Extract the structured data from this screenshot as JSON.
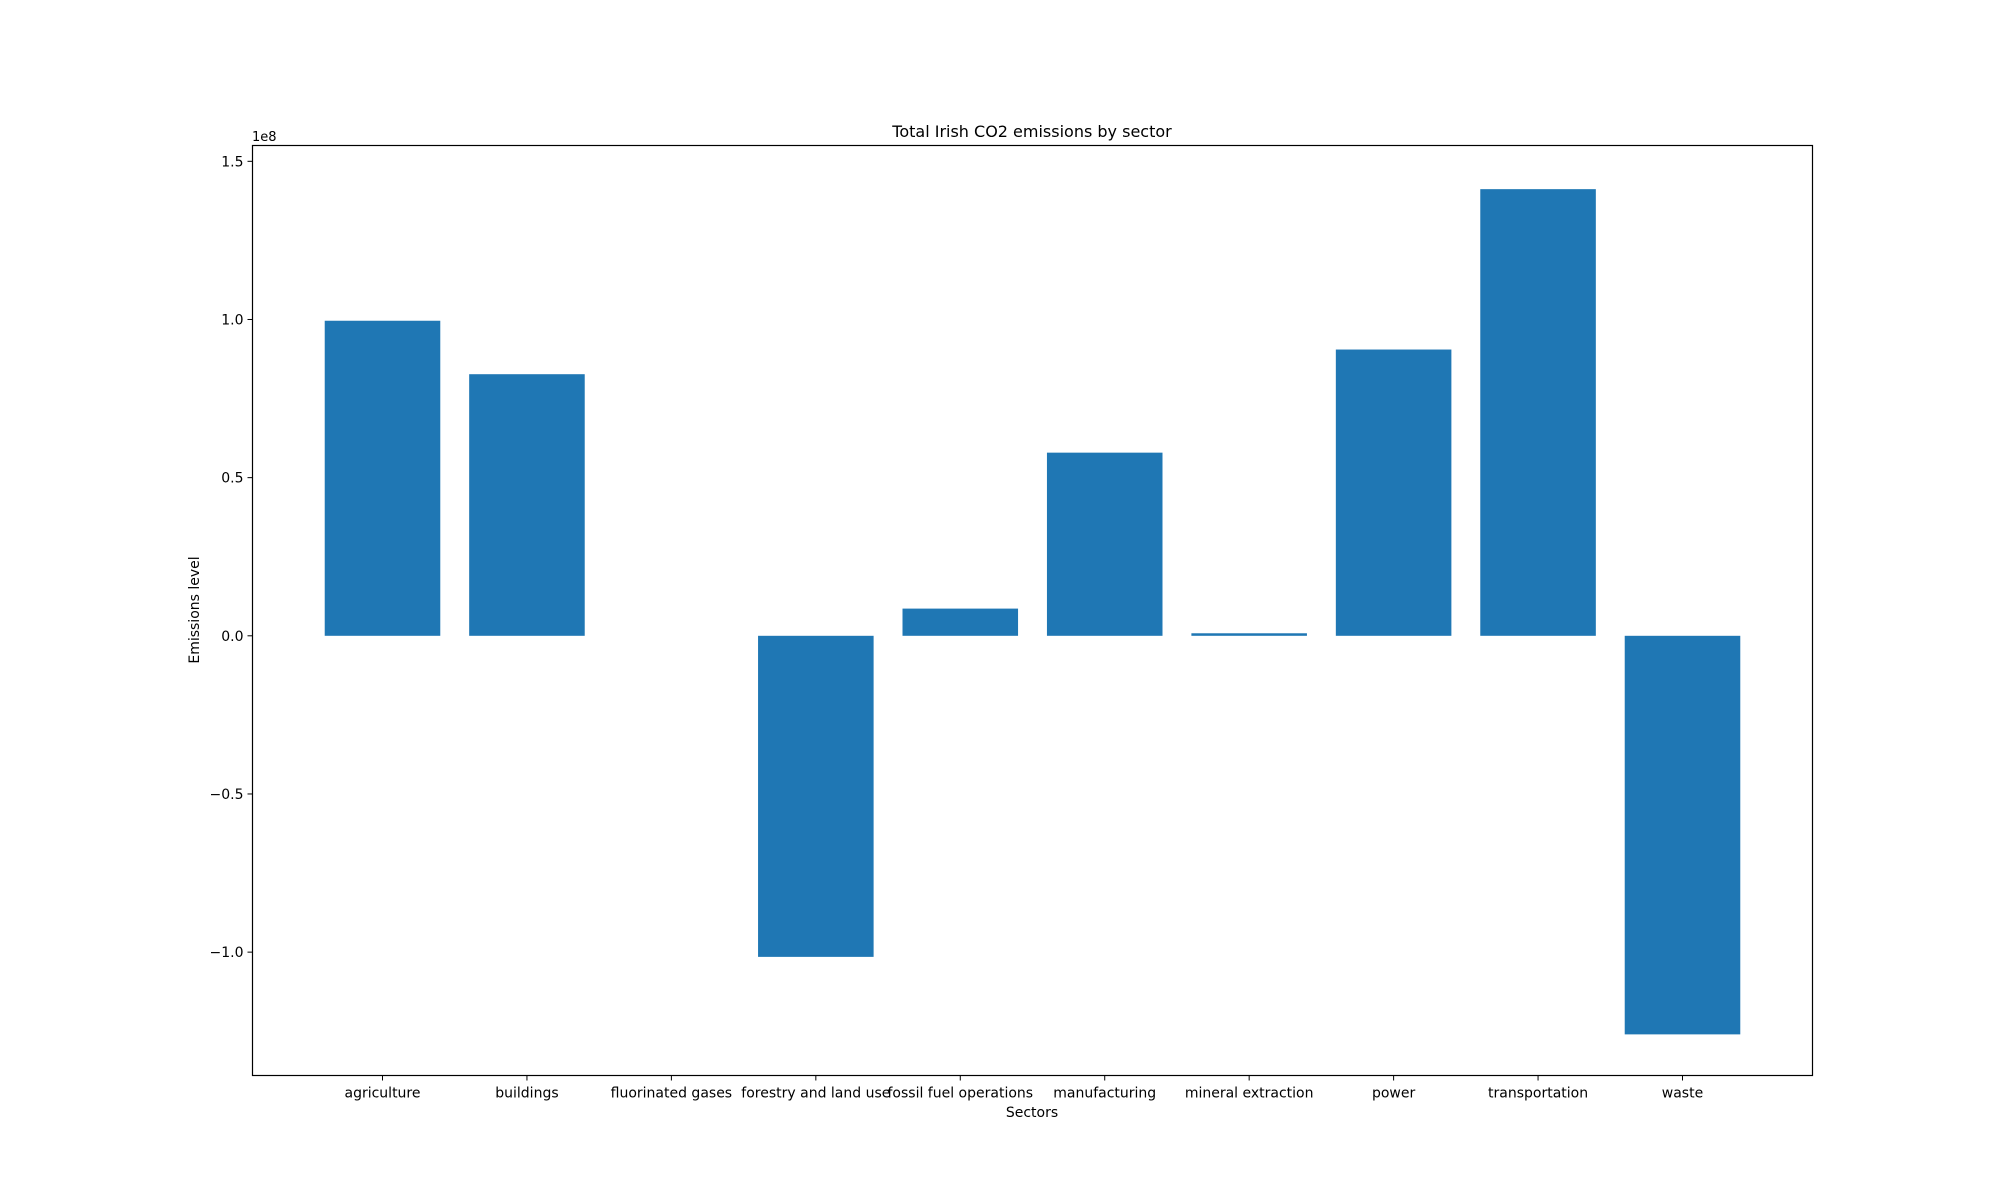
{
  "chart_data": {
    "type": "bar",
    "title": "Total Irish CO2 emissions by sector",
    "xlabel": "Sectors",
    "ylabel": "Emissions level",
    "y_offset_label": "1e8",
    "y_scale": 100000000,
    "ylim": [
      -1.39,
      1.55
    ],
    "yticks": [
      -1.0,
      -0.5,
      0.0,
      0.5,
      1.0,
      1.5
    ],
    "ytick_labels": [
      "−1.0",
      "−0.5",
      "0.0",
      "0.5",
      "1.0",
      "1.5"
    ],
    "categories": [
      "agriculture",
      "buildings",
      "fluorinated gases",
      "forestry and land use",
      "fossil fuel operations",
      "manufacturing",
      "mineral extraction",
      "power",
      "transportation",
      "waste"
    ],
    "values": [
      99600000,
      82700000,
      0,
      -101500000,
      8600000,
      57900000,
      800000,
      90500000,
      141200000,
      -126000000
    ],
    "bar_color": "#1f77b4",
    "grid": false,
    "legend": "none"
  }
}
